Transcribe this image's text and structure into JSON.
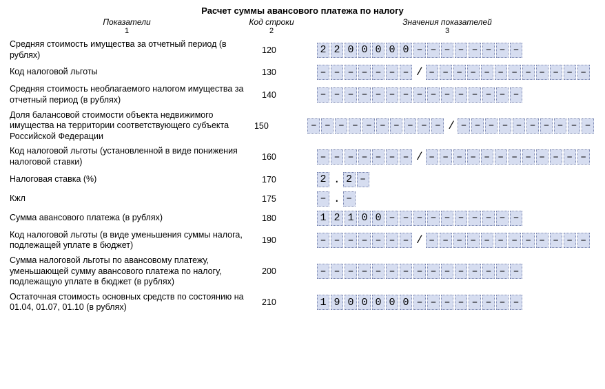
{
  "title": "Расчет суммы авансового платежа по налогу",
  "headers": {
    "col1": "Показатели",
    "col1_sub": "1",
    "col2": "Код строки",
    "col2_sub": "2",
    "col3": "Значения показателей",
    "col3_sub": "3"
  },
  "dash": "–",
  "rows": [
    {
      "label": "Средняя стоимость имущества за отчетный период (в рублях)",
      "code": "120",
      "groups": [
        {
          "cells": [
            "2",
            "2",
            "0",
            "0",
            "0",
            "0",
            "0",
            "–",
            "–",
            "–",
            "–",
            "–",
            "–",
            "–",
            "–"
          ]
        }
      ]
    },
    {
      "label": "Код налоговой льготы",
      "code": "130",
      "groups": [
        {
          "cells": [
            "–",
            "–",
            "–",
            "–",
            "–",
            "–",
            "–"
          ]
        },
        {
          "sep": "/"
        },
        {
          "cells": [
            "–",
            "–",
            "–",
            "–",
            "–",
            "–",
            "–",
            "–",
            "–",
            "–",
            "–",
            "–"
          ]
        }
      ]
    },
    {
      "label": "Средняя стоимость необлагаемого налогом имущества за отчетный период (в рублях)",
      "code": "140",
      "groups": [
        {
          "cells": [
            "–",
            "–",
            "–",
            "–",
            "–",
            "–",
            "–",
            "–",
            "–",
            "–",
            "–",
            "–",
            "–",
            "–",
            "–"
          ]
        }
      ]
    },
    {
      "label": "Доля балансовой стоимости объекта недвижимого имущества на территории соответствующего субъекта Российской Федерации",
      "code": "150",
      "groups": [
        {
          "cells": [
            "–",
            "–",
            "–",
            "–",
            "–",
            "–",
            "–",
            "–",
            "–",
            "–"
          ]
        },
        {
          "sep": "/"
        },
        {
          "cells": [
            "–",
            "–",
            "–",
            "–",
            "–",
            "–",
            "–",
            "–",
            "–",
            "–"
          ]
        }
      ]
    },
    {
      "label": "Код налоговой льготы (установленной в виде понижения налоговой ставки)",
      "code": "160",
      "groups": [
        {
          "cells": [
            "–",
            "–",
            "–",
            "–",
            "–",
            "–",
            "–"
          ]
        },
        {
          "sep": "/"
        },
        {
          "cells": [
            "–",
            "–",
            "–",
            "–",
            "–",
            "–",
            "–",
            "–",
            "–",
            "–",
            "–",
            "–"
          ]
        }
      ]
    },
    {
      "label": "Налоговая ставка (%)",
      "code": "170",
      "groups": [
        {
          "cells": [
            "2"
          ]
        },
        {
          "sep": "."
        },
        {
          "cells": [
            "2",
            "–"
          ]
        }
      ]
    },
    {
      "label": "Кжл",
      "code": "175",
      "groups": [
        {
          "cells": [
            "–"
          ]
        },
        {
          "sep": "."
        },
        {
          "cells": [
            "–"
          ]
        }
      ]
    },
    {
      "label": "Сумма авансового платежа (в рублях)",
      "code": "180",
      "groups": [
        {
          "cells": [
            "1",
            "2",
            "1",
            "0",
            "0",
            "–",
            "–",
            "–",
            "–",
            "–",
            "–",
            "–",
            "–",
            "–",
            "–"
          ]
        }
      ]
    },
    {
      "label": "Код налоговой льготы (в виде уменьшения суммы налога, подлежащей уплате в бюджет)",
      "code": "190",
      "groups": [
        {
          "cells": [
            "–",
            "–",
            "–",
            "–",
            "–",
            "–",
            "–"
          ]
        },
        {
          "sep": "/"
        },
        {
          "cells": [
            "–",
            "–",
            "–",
            "–",
            "–",
            "–",
            "–",
            "–",
            "–",
            "–",
            "–",
            "–"
          ]
        }
      ]
    },
    {
      "label": "Сумма налоговой льготы по авансовому платежу, уменьшающей сумму авансового платежа по налогу, подлежащую уплате в бюджет (в рублях)",
      "code": "200",
      "groups": [
        {
          "cells": [
            "–",
            "–",
            "–",
            "–",
            "–",
            "–",
            "–",
            "–",
            "–",
            "–",
            "–",
            "–",
            "–",
            "–",
            "–"
          ]
        }
      ]
    },
    {
      "label": "Остаточная стоимость основных средств по состоянию на 01.04, 01.07, 01.10 (в рублях)",
      "code": "210",
      "groups": [
        {
          "cells": [
            "1",
            "9",
            "0",
            "0",
            "0",
            "0",
            "0",
            "–",
            "–",
            "–",
            "–",
            "–",
            "–",
            "–",
            "–"
          ]
        }
      ]
    }
  ],
  "colors": {
    "cell_bg": "#d6ddf0",
    "cell_border": "#7a86b0",
    "page_bg": "#ffffff",
    "text": "#000000"
  },
  "fonts": {
    "body_family": "Arial",
    "cell_family": "Courier New",
    "title_size_pt": 13,
    "label_size_pt": 12.5,
    "cell_size_pt": 15
  }
}
